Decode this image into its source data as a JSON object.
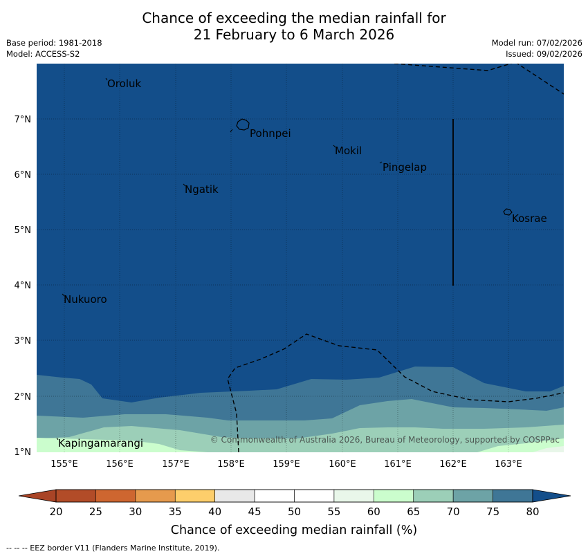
{
  "header": {
    "title_line1": "Chance of exceeding the median rainfall for",
    "title_line2": "21 February to 6 March 2026",
    "base_period": "Base period: 1981-2018",
    "model": "Model: ACCESS-S2",
    "model_run": "Model run: 07/02/2026",
    "issued": "Issued: 09/02/2026"
  },
  "map": {
    "lon_labels": [
      "155°E",
      "156°E",
      "157°E",
      "158°E",
      "159°E",
      "160°E",
      "161°E",
      "162°E",
      "163°E"
    ],
    "lat_labels": [
      "7°N",
      "6°N",
      "5°N",
      "4°N",
      "3°N",
      "2°N",
      "1°N"
    ],
    "places": [
      "Oroluk",
      "Pohnpei",
      "Mokil",
      "Pingelap",
      "Ngatik",
      "Kosrae",
      "Nukuoro",
      "Kapingamarangi"
    ],
    "copyright": "© Commonwealth of Australia 2026, Bureau of Meteorology, supported by COSPPac",
    "colors": {
      "band_80": "#134e8a",
      "band_75": "#3f7696",
      "band_70": "#6da3a6",
      "band_65": "#9ccfb8",
      "band_60": "#cbfdcd",
      "band_55": "#e8f6e9"
    }
  },
  "colorbar": {
    "ticks": [
      "20",
      "25",
      "30",
      "35",
      "40",
      "45",
      "50",
      "55",
      "60",
      "65",
      "70",
      "75",
      "80"
    ],
    "label": "Chance of exceeding median rainfall (%)",
    "colors": [
      "#b24c28",
      "#ce6630",
      "#e69a4d",
      "#fdce6b",
      "#e8e8e8",
      "#ffffff",
      "#ffffff",
      "#e9f7ea",
      "#cbfdcd",
      "#9ccfb8",
      "#6da3a6",
      "#3f7696"
    ],
    "under_color": "#a94426",
    "over_color": "#134e8a"
  },
  "footnote": "--  --  -- EEZ border V11 (Flanders Marine Institute, 2019)."
}
